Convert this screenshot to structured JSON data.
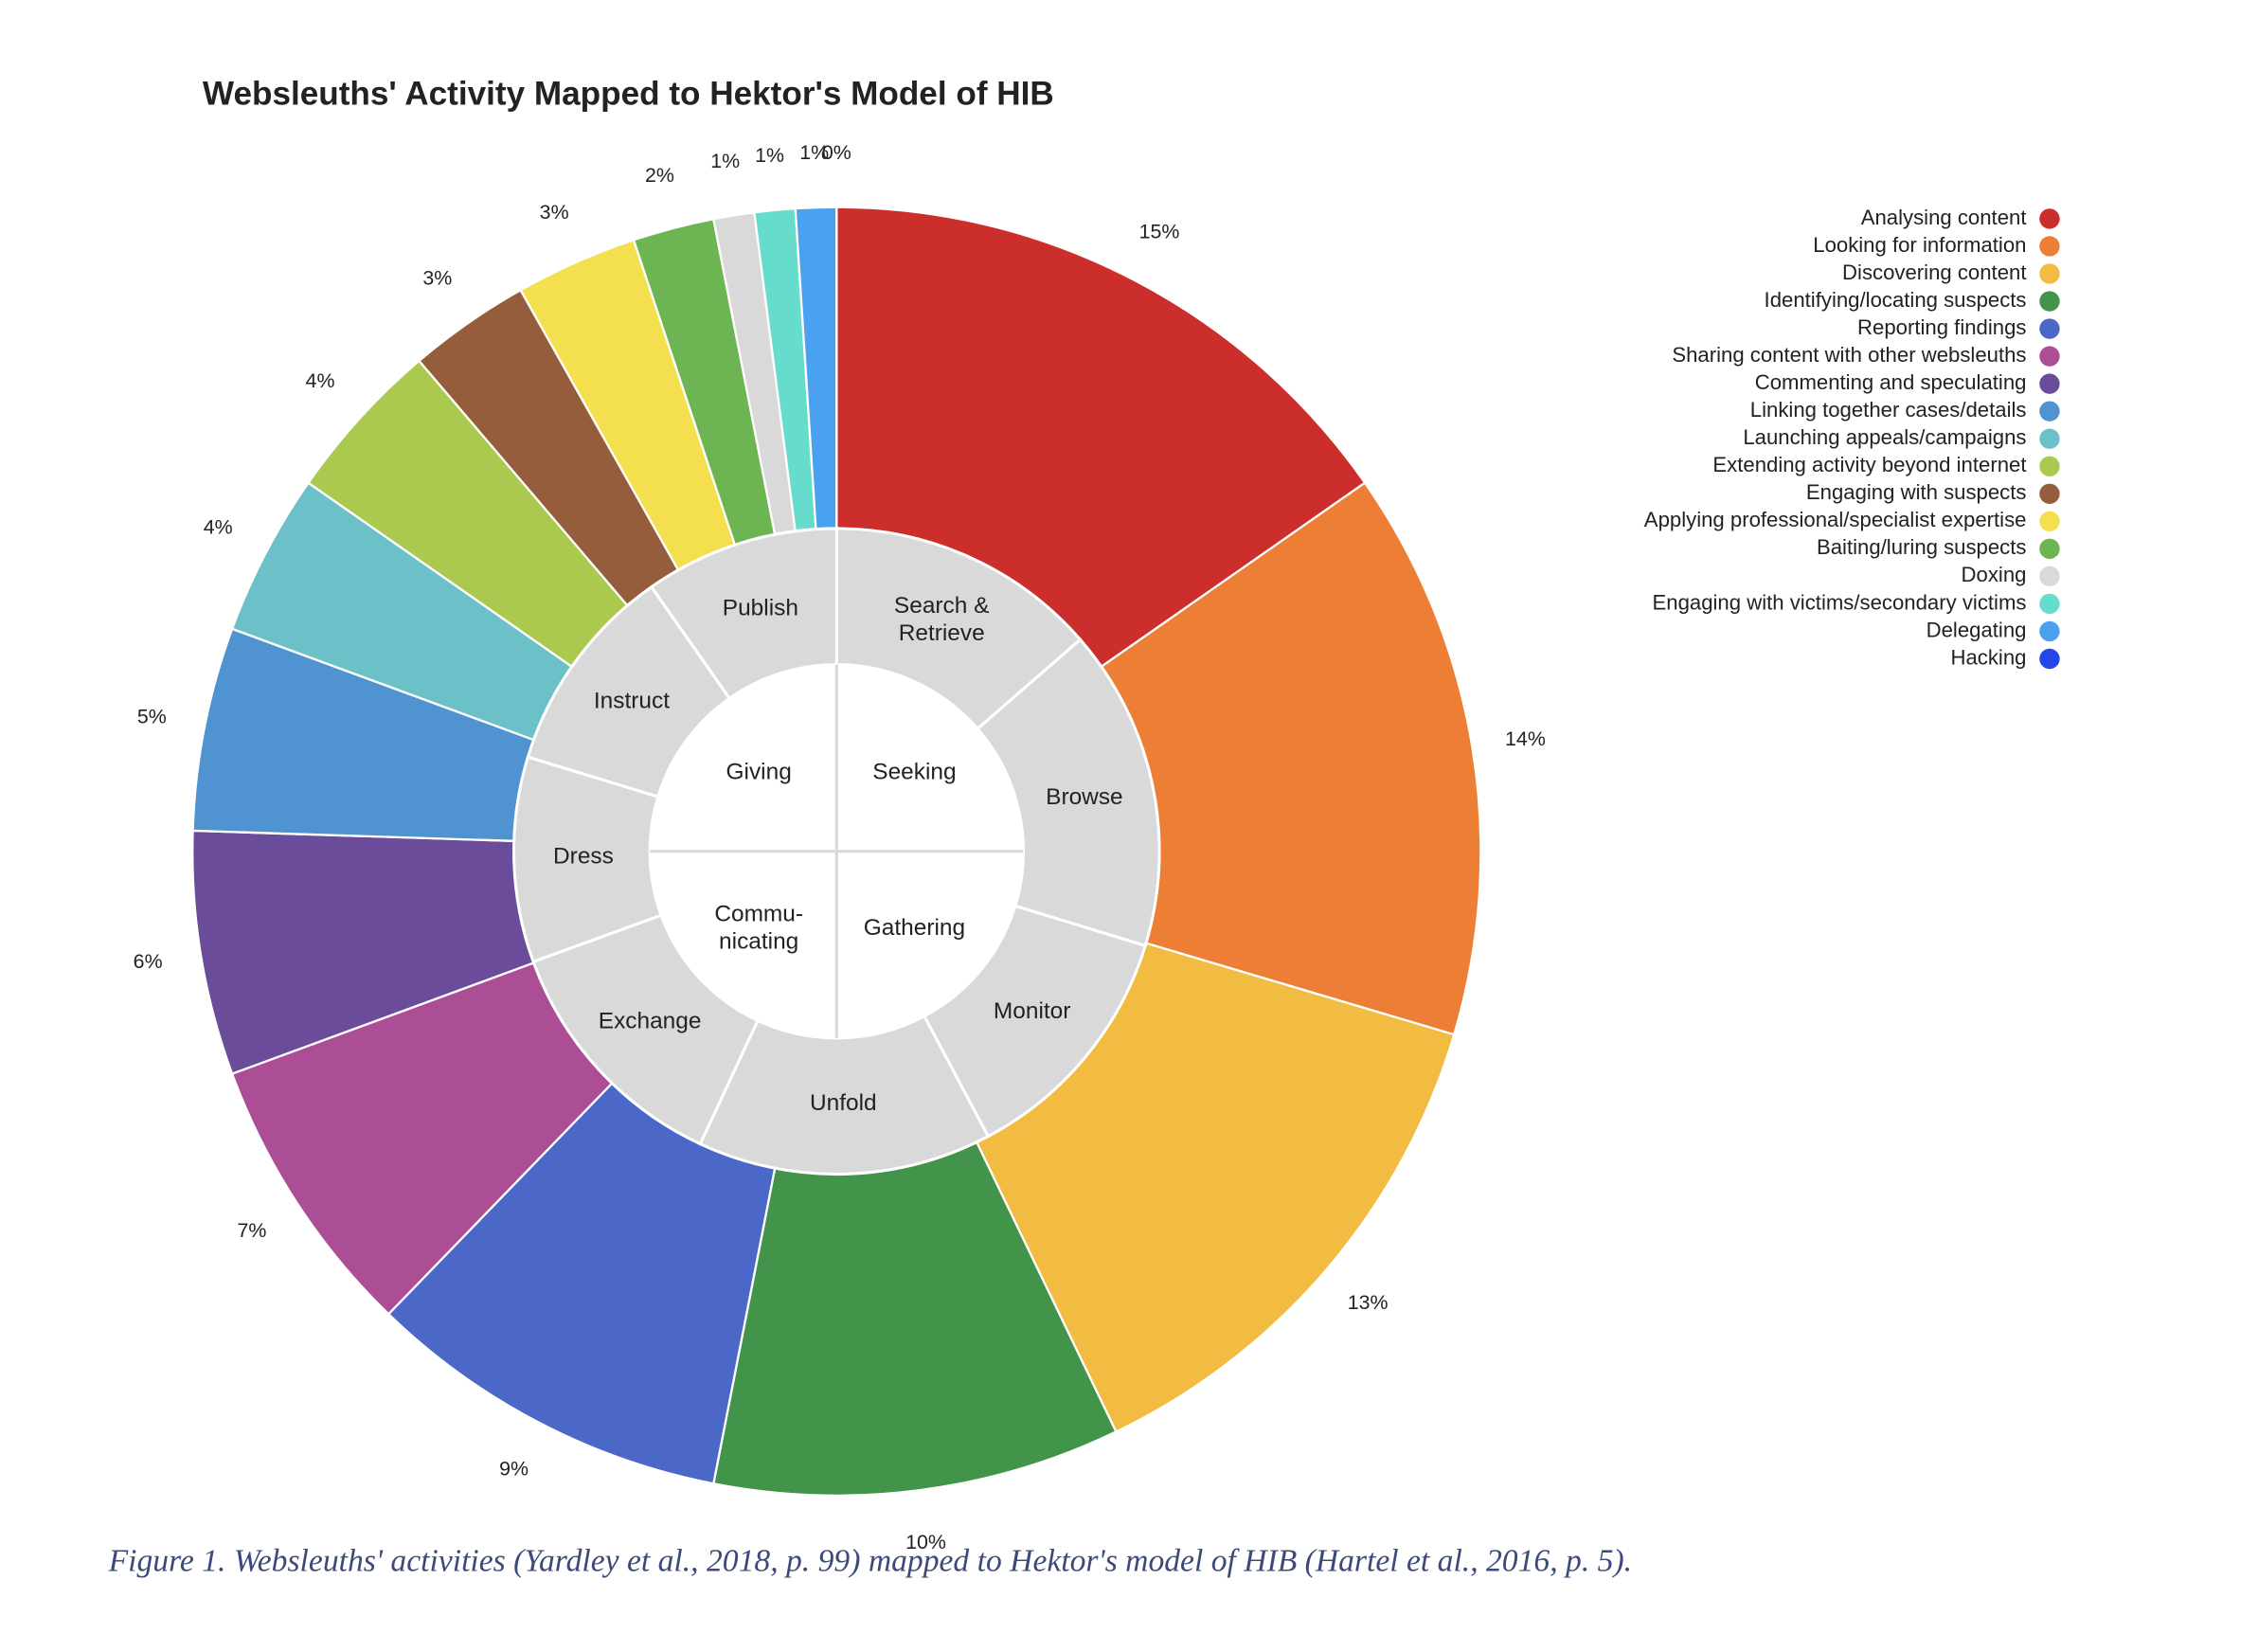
{
  "chart_data": {
    "type": "pie",
    "title": "Websleuths' Activity Mapped to Hektor's Model of HIB",
    "categories": [
      "Analysing content",
      "Looking for information",
      "Discovering content",
      "Identifying/locating suspects",
      "Reporting findings",
      "Sharing content with other websleuths",
      "Commenting and speculating",
      "Linking together cases/details",
      "Launching appeals/campaigns",
      "Extending activity beyond internet",
      "Engaging with suspects",
      "Applying professional/specialist expertise",
      "Baiting/luring suspects",
      "Doxing",
      "Engaging with victims/secondary victims",
      "Delegating",
      "Hacking"
    ],
    "values": [
      15,
      14,
      13,
      10,
      9,
      7,
      6,
      5,
      4,
      4,
      3,
      3,
      2,
      1,
      1,
      1,
      0
    ],
    "value_labels": [
      "15%",
      "14%",
      "13%",
      "10%",
      "9%",
      "7%",
      "6%",
      "5%",
      "4%",
      "4%",
      "3%",
      "3%",
      "2%",
      "1%",
      "1%",
      "1%",
      "0%"
    ],
    "colors": [
      "#cc2e2b",
      "#ec7e35",
      "#f2bb41",
      "#41944a",
      "#4b68c8",
      "#ac4e96",
      "#6a4c9a",
      "#4f93d0",
      "#6cc0c8",
      "#abc94f",
      "#955d3b",
      "#f4df4f",
      "#6db553",
      "#d9d9d9",
      "#66dccc",
      "#4aa1f0",
      "#2347e8"
    ],
    "legend": "right",
    "inner_ring": [
      [
        "Search &",
        "Retrieve"
      ],
      [
        "Browse"
      ],
      [
        "Monitor"
      ],
      [
        "Unfold"
      ],
      [
        "Exchange"
      ],
      [
        "Dress"
      ],
      [
        "Instruct"
      ],
      [
        "Publish"
      ]
    ],
    "center": [
      [
        "Seeking"
      ],
      [
        "Gathering"
      ],
      [
        "Commu-",
        "nicating"
      ],
      [
        "Giving"
      ]
    ]
  },
  "caption": "Figure 1. Websleuths' activities (Yardley et al., 2018, p. 99) mapped to Hektor's model of HIB (Hartel et al., 2016, p. 5)."
}
